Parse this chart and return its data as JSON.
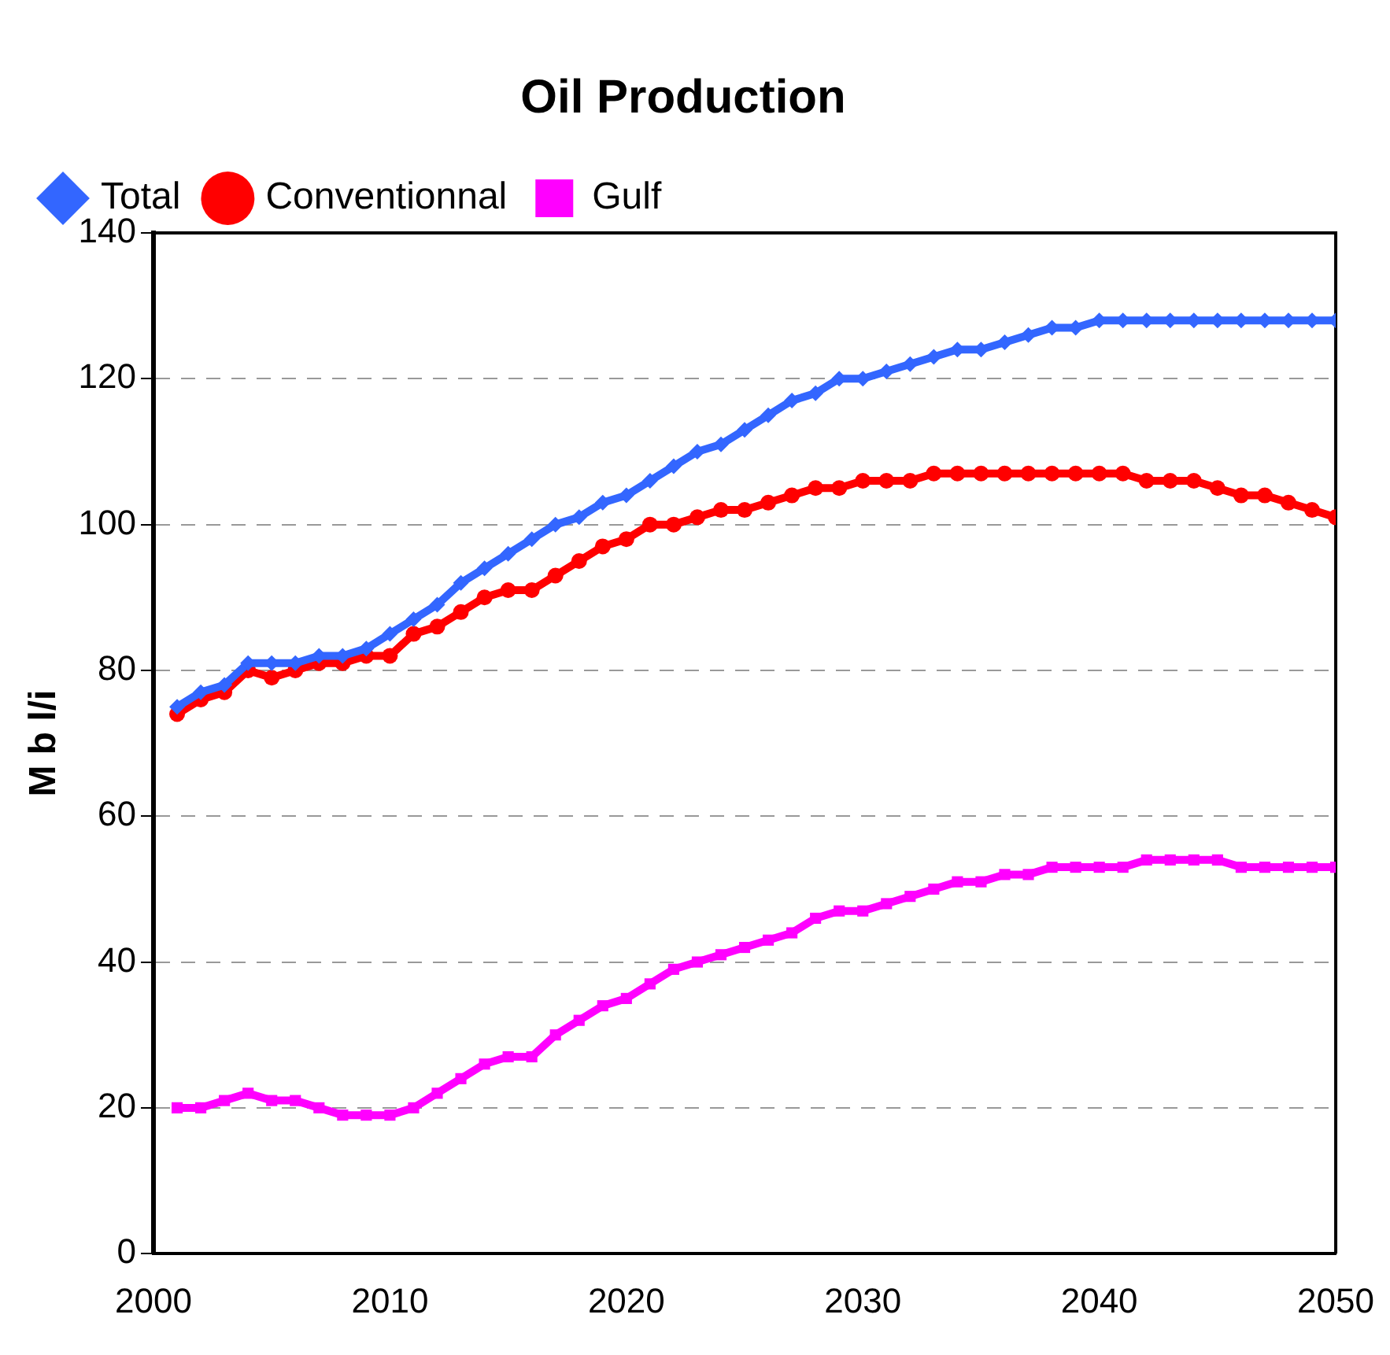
{
  "chart_data": {
    "type": "line",
    "title": "Oil Production",
    "ylabel": "M b l/i",
    "x": [
      2001,
      2002,
      2003,
      2004,
      2005,
      2006,
      2007,
      2008,
      2009,
      2010,
      2011,
      2012,
      2013,
      2014,
      2015,
      2016,
      2017,
      2018,
      2019,
      2020,
      2021,
      2022,
      2023,
      2024,
      2025,
      2026,
      2027,
      2028,
      2029,
      2030,
      2031,
      2032,
      2033,
      2034,
      2035,
      2036,
      2037,
      2038,
      2039,
      2040,
      2041,
      2042,
      2043,
      2044,
      2045,
      2046,
      2047,
      2048,
      2049,
      2050
    ],
    "series": [
      {
        "name": "Total",
        "color": "#3366ff",
        "marker": "diamond",
        "values": [
          75,
          77,
          78,
          81,
          81,
          81,
          82,
          82,
          83,
          85,
          87,
          89,
          92,
          94,
          96,
          98,
          100,
          101,
          103,
          104,
          106,
          108,
          110,
          111,
          113,
          115,
          117,
          118,
          120,
          120,
          121,
          122,
          123,
          124,
          124,
          125,
          126,
          127,
          127,
          128,
          128,
          128,
          128,
          128,
          128,
          128,
          128,
          128,
          128,
          128
        ]
      },
      {
        "name": "Conventionnal",
        "color": "#ff0000",
        "marker": "circle",
        "values": [
          74,
          76,
          77,
          80,
          79,
          80,
          81,
          81,
          82,
          82,
          85,
          86,
          88,
          90,
          91,
          91,
          93,
          95,
          97,
          98,
          100,
          100,
          101,
          102,
          102,
          103,
          104,
          105,
          105,
          106,
          106,
          106,
          107,
          107,
          107,
          107,
          107,
          107,
          107,
          107,
          107,
          106,
          106,
          106,
          105,
          104,
          104,
          103,
          102,
          101
        ]
      },
      {
        "name": "Gulf",
        "color": "#ff00ff",
        "marker": "square",
        "values": [
          20,
          20,
          21,
          22,
          21,
          21,
          20,
          19,
          19,
          19,
          20,
          22,
          24,
          26,
          27,
          27,
          30,
          32,
          34,
          35,
          37,
          39,
          40,
          41,
          42,
          43,
          44,
          46,
          47,
          47,
          48,
          49,
          50,
          51,
          51,
          52,
          52,
          53,
          53,
          53,
          53,
          54,
          54,
          54,
          54,
          53,
          53,
          53,
          53,
          53
        ]
      }
    ],
    "xlim": [
      2000,
      2050
    ],
    "xticks": [
      2000,
      2010,
      2020,
      2030,
      2040,
      2050
    ],
    "ylim": [
      0,
      140
    ],
    "yticks": [
      0,
      20,
      40,
      60,
      80,
      100,
      120,
      140
    ],
    "grid": "y",
    "legend": "top left",
    "line_style": "solid"
  }
}
